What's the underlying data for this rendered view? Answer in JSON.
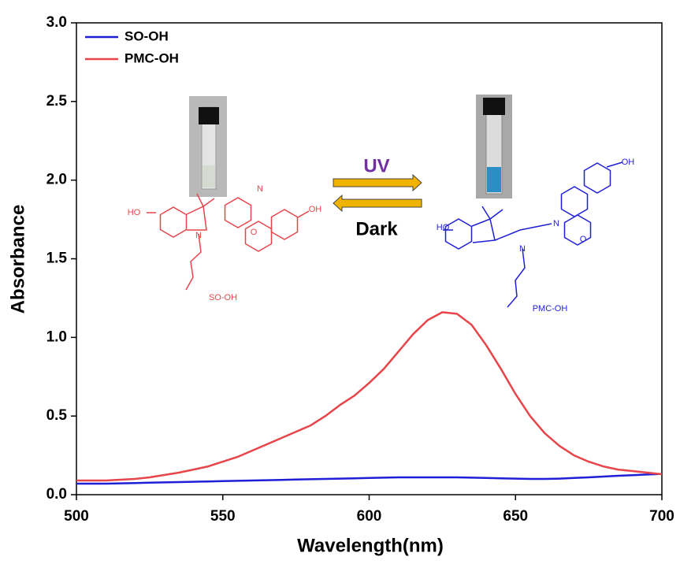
{
  "chart_data": {
    "type": "line",
    "xlabel": "Wavelength(nm)",
    "ylabel": "Absorbance",
    "x": [
      500,
      505,
      510,
      515,
      520,
      525,
      530,
      535,
      540,
      545,
      550,
      555,
      560,
      565,
      570,
      575,
      580,
      585,
      590,
      595,
      600,
      605,
      610,
      615,
      620,
      625,
      630,
      635,
      640,
      645,
      650,
      655,
      660,
      665,
      670,
      675,
      680,
      685,
      690,
      695,
      700
    ],
    "series": [
      {
        "name": "SO-OH",
        "color": "#1f1fd6",
        "values": [
          0.07,
          0.07,
          0.07,
          0.072,
          0.074,
          0.076,
          0.078,
          0.08,
          0.082,
          0.084,
          0.086,
          0.088,
          0.09,
          0.092,
          0.094,
          0.096,
          0.098,
          0.1,
          0.102,
          0.104,
          0.106,
          0.108,
          0.11,
          0.11,
          0.11,
          0.11,
          0.11,
          0.108,
          0.106,
          0.104,
          0.102,
          0.1,
          0.1,
          0.102,
          0.106,
          0.11,
          0.115,
          0.12,
          0.124,
          0.128,
          0.132
        ]
      },
      {
        "name": "PMC-OH",
        "color": "#e8454a",
        "values": [
          0.09,
          0.09,
          0.09,
          0.095,
          0.1,
          0.11,
          0.125,
          0.14,
          0.16,
          0.18,
          0.21,
          0.24,
          0.28,
          0.32,
          0.36,
          0.4,
          0.44,
          0.5,
          0.57,
          0.63,
          0.71,
          0.8,
          0.91,
          1.02,
          1.11,
          1.16,
          1.15,
          1.08,
          0.95,
          0.8,
          0.64,
          0.5,
          0.39,
          0.31,
          0.25,
          0.21,
          0.18,
          0.16,
          0.15,
          0.14,
          0.13
        ]
      }
    ],
    "xlim": [
      500,
      700
    ],
    "ylim": [
      0,
      3
    ],
    "xticks": [
      500,
      550,
      600,
      650,
      700
    ],
    "yticks": [
      {
        "value": 0,
        "label": "0.0"
      },
      0.5,
      {
        "value": 1,
        "label": "1.0"
      },
      1.5,
      {
        "value": 2,
        "label": "2.0"
      },
      2.5,
      {
        "value": 3,
        "label": "3.0"
      }
    ],
    "legend": "upper left",
    "annotations": [
      "UV",
      "Dark",
      "SO-OH",
      "PMC-OH",
      "HO",
      "N",
      "N",
      "O",
      "OH",
      "HO",
      "N",
      "N",
      "O",
      "OH"
    ]
  }
}
